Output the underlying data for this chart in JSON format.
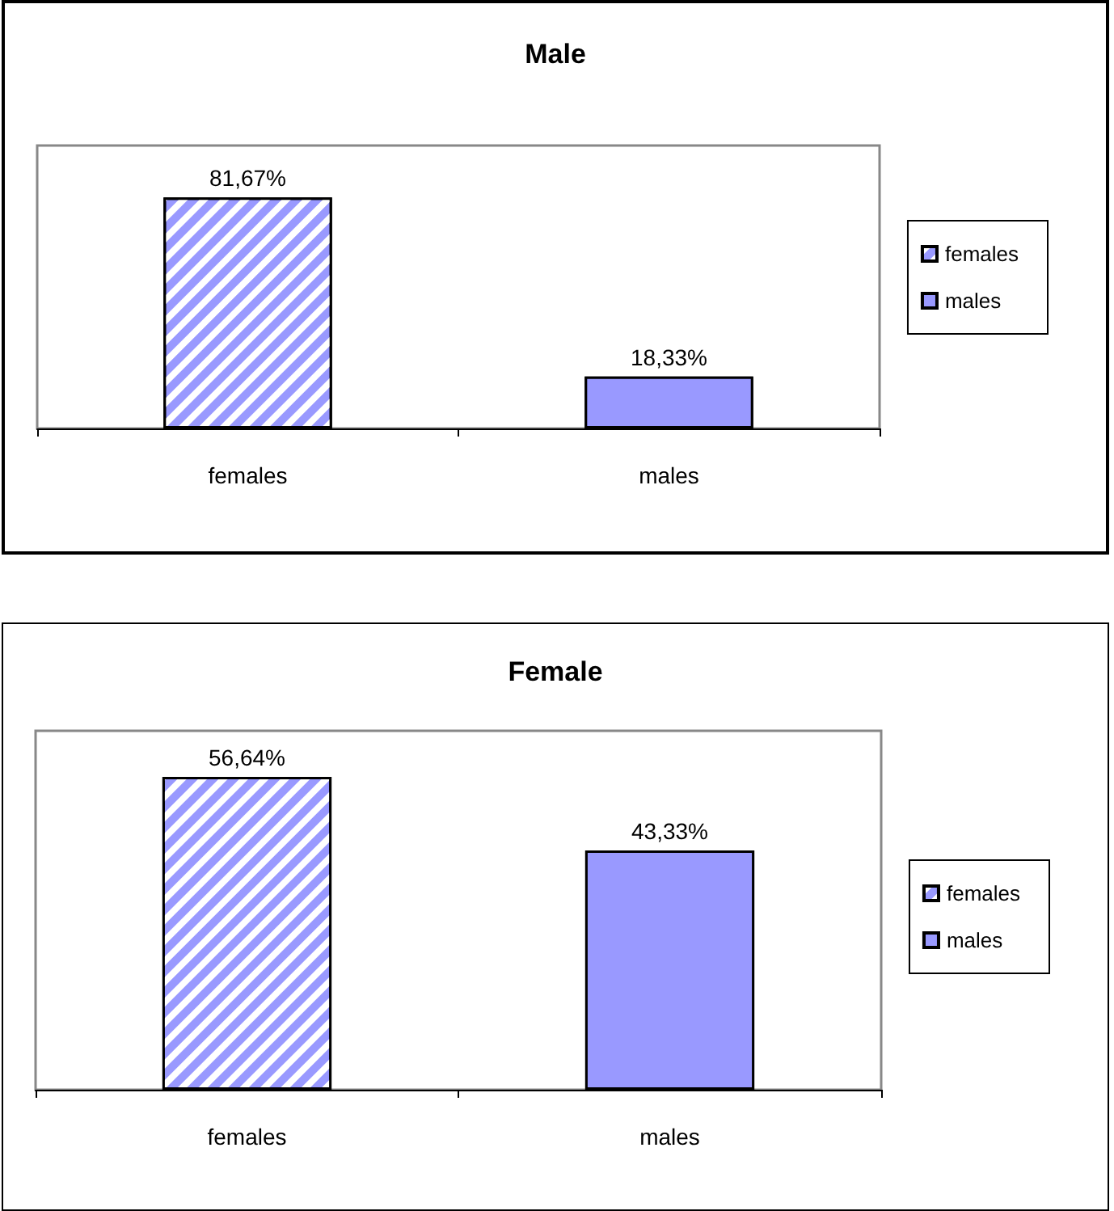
{
  "chart_data": [
    {
      "type": "bar",
      "title": "Male",
      "categories": [
        "females",
        "males"
      ],
      "ylim": [
        0,
        100
      ],
      "legend": "right",
      "series": [
        {
          "name": "females",
          "color": "#9999ff",
          "values": [
            81.67,
            null
          ],
          "value_labels": [
            "81,67%",
            null
          ]
        },
        {
          "name": "males",
          "color": "#9999ff",
          "values": [
            null,
            18.33
          ],
          "value_labels": [
            null,
            "18,33%"
          ]
        }
      ]
    },
    {
      "type": "bar",
      "title": "Female",
      "categories": [
        "females",
        "males"
      ],
      "ylim": [
        0,
        65
      ],
      "legend": "right",
      "series": [
        {
          "name": "females",
          "color": "#9999ff",
          "values": [
            56.64,
            null
          ],
          "value_labels": [
            "56,64%",
            null
          ]
        },
        {
          "name": "males",
          "color": "#9999ff",
          "values": [
            null,
            43.33
          ],
          "value_labels": [
            null,
            "43,33%"
          ]
        }
      ]
    }
  ]
}
